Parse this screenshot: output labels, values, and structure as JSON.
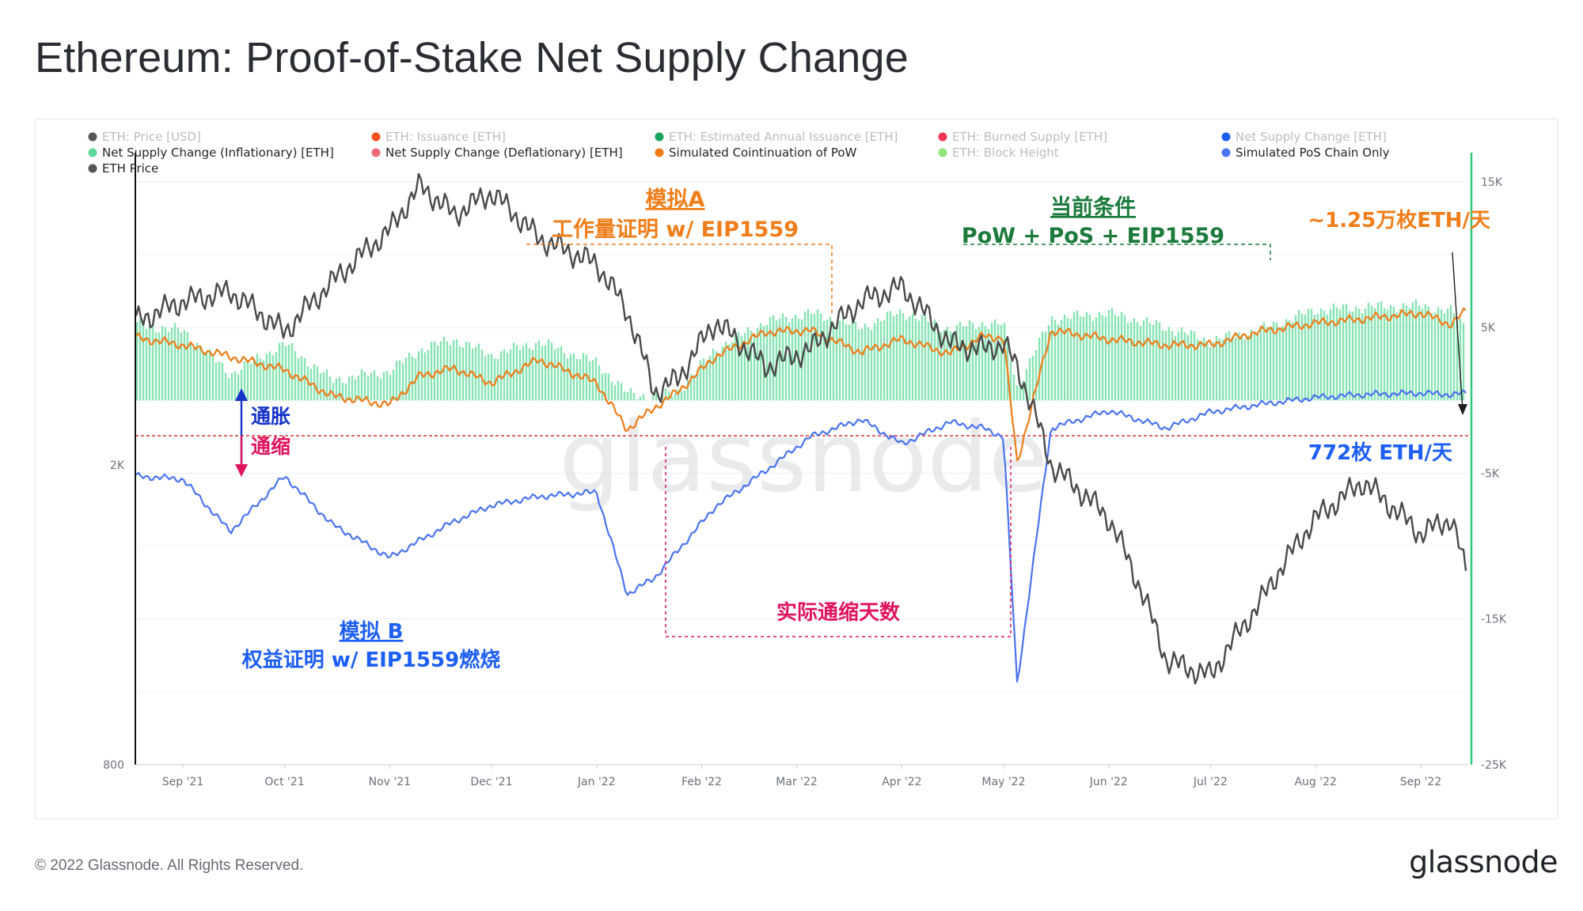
{
  "title": "Ethereum: Proof-of-Stake Net Supply Change",
  "copyright": "© 2022 Glassnode. All Rights Reserved.",
  "footer_logo": "glassnode",
  "watermark": "glassnode",
  "legend": [
    {
      "label": "ETH: Price [USD]",
      "color": "#555555",
      "active": false
    },
    {
      "label": "ETH: Issuance [ETH]",
      "color": "#f4511e",
      "active": false
    },
    {
      "label": "ETH: Estimated Annual Issuance [ETH]",
      "color": "#1aa35a",
      "active": false
    },
    {
      "label": "ETH: Burned Supply [ETH]",
      "color": "#f0374f",
      "active": false
    },
    {
      "label": "Net Supply Change [ETH]",
      "color": "#1d5ef5",
      "active": false
    },
    {
      "label": "Net Supply Change (Inflationary) [ETH]",
      "color": "#5fd99a",
      "active": true
    },
    {
      "label": "Net Supply Change (Deflationary) [ETH]",
      "color": "#f06a7a",
      "active": true
    },
    {
      "label": "Simulated Cointinuation of PoW",
      "color": "#ef7d19",
      "active": true
    },
    {
      "label": "ETH: Block Height",
      "color": "#8ee37a",
      "active": false
    },
    {
      "label": "Simulated PoS Chain Only",
      "color": "#4a74f0",
      "active": true
    },
    {
      "label": "ETH Price",
      "color": "#555555",
      "active": true
    }
  ],
  "annotations": {
    "sim_a_title": "模拟A",
    "sim_a_sub": "工作量证明 w/ EIP1559",
    "current_title": "当前条件",
    "current_sub": "PoW + PoS + EIP1559",
    "pow_rate": "~1.25万枚ETH/天",
    "inflation": "通胀",
    "deflation": "通缩",
    "pos_rate": "772枚 ETH/天",
    "deflation_days": "实际通缩天数",
    "sim_b_title": "模拟 B",
    "sim_b_sub": "权益证明 w/ EIP1559燃烧"
  },
  "colors": {
    "inflationary_bar": "#5fd99a",
    "pow_line": "#ef7d19",
    "pos_line": "#4a74f0",
    "price_line": "#4a4a4a",
    "zero_line": "#d9343a",
    "annotation_orange": "#ef7d19",
    "annotation_green": "#1b7a3c",
    "annotation_blue": "#1d5ef5",
    "annotation_pink": "#e0145e",
    "annotation_navy": "#1533c9"
  },
  "chart_data": {
    "type": "line",
    "x_dates": [
      "2021-08-18",
      "2021-09-01",
      "2021-09-15",
      "2021-10-01",
      "2021-10-15",
      "2021-11-01",
      "2021-11-10",
      "2021-11-20",
      "2021-12-01",
      "2021-12-15",
      "2022-01-01",
      "2022-01-10",
      "2022-01-18",
      "2022-01-25",
      "2022-02-05",
      "2022-02-20",
      "2022-03-05",
      "2022-03-20",
      "2022-04-01",
      "2022-04-15",
      "2022-04-25",
      "2022-05-01",
      "2022-05-05",
      "2022-05-15",
      "2022-06-01",
      "2022-06-18",
      "2022-07-01",
      "2022-07-15",
      "2022-08-01",
      "2022-08-15",
      "2022-09-01",
      "2022-09-10",
      "2022-09-15"
    ],
    "series": [
      {
        "name": "Net Supply Change (Inflationary) [ETH]",
        "type": "bar",
        "axis": "right",
        "values": [
          5200,
          4800,
          1800,
          3900,
          1400,
          2000,
          3500,
          4200,
          3100,
          4000,
          2600,
          500,
          200,
          600,
          3500,
          5400,
          6000,
          5000,
          6100,
          4900,
          5300,
          5200,
          900,
          5600,
          6000,
          5000,
          4100,
          4800,
          6200,
          6400,
          6500,
          6100,
          4800
        ]
      },
      {
        "name": "Simulated Cointinuation of PoW",
        "type": "line",
        "axis": "right",
        "values": [
          4300,
          3800,
          3000,
          2100,
          300,
          -300,
          1700,
          2200,
          1200,
          2800,
          1200,
          -2000,
          -500,
          600,
          3000,
          4700,
          4800,
          3300,
          4200,
          3200,
          4400,
          4300,
          -4300,
          4800,
          4200,
          3800,
          3800,
          4700,
          5300,
          5600,
          6000,
          5200,
          6300
        ]
      },
      {
        "name": "Simulated PoS Chain Only",
        "type": "line",
        "axis": "right",
        "values": [
          -5200,
          -5400,
          -9000,
          -5200,
          -8500,
          -10800,
          -9600,
          -8300,
          -7200,
          -6600,
          -6300,
          -13300,
          -12200,
          -10300,
          -7300,
          -4800,
          -2500,
          -1300,
          -3000,
          -1500,
          -1900,
          -2500,
          -19500,
          -1900,
          -700,
          -1900,
          -800,
          -300,
          200,
          400,
          500,
          400,
          500
        ]
      },
      {
        "name": "ETH Price",
        "type": "line",
        "axis": "left",
        "values": [
          3100,
          3300,
          3400,
          3000,
          3500,
          4100,
          4700,
          4300,
          4600,
          4000,
          3700,
          3200,
          2500,
          2600,
          3100,
          2700,
          2850,
          3300,
          3450,
          2900,
          2850,
          2900,
          2700,
          2000,
          1700,
          1100,
          1050,
          1300,
          1700,
          1900,
          1620,
          1700,
          1400
        ]
      }
    ],
    "x_ticks": [
      "Sep '21",
      "Oct '21",
      "Nov '21",
      "Dec '21",
      "Jan '22",
      "Feb '22",
      "Mar '22",
      "Apr '22",
      "May '22",
      "Jun '22",
      "Jul '22",
      "Aug '22",
      "Sep '22"
    ],
    "y_left": {
      "scale": "log",
      "ticks": [
        "2K",
        "800"
      ],
      "range": [
        800,
        5200
      ]
    },
    "y_right": {
      "scale": "linear",
      "ticks": [
        "15K",
        "5K",
        "-5K",
        "-15K",
        "-25K"
      ],
      "range": [
        -25000,
        17000
      ]
    },
    "grid": true,
    "legend_position": "top"
  }
}
